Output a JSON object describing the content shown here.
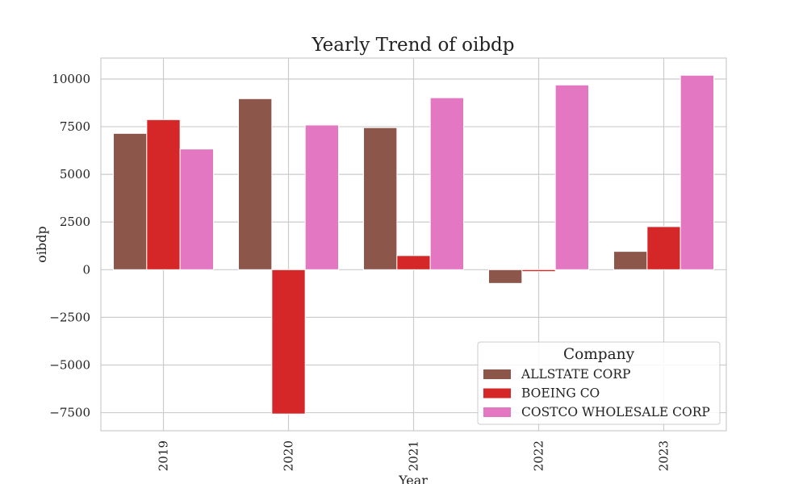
{
  "chart_data": {
    "type": "bar",
    "title": "Yearly Trend of oibdp",
    "xlabel": "Year",
    "ylabel": "oibdp",
    "categories": [
      "2019",
      "2020",
      "2021",
      "2022",
      "2023"
    ],
    "series": [
      {
        "name": "ALLSTATE CORP",
        "color": "#8c564b",
        "values": [
          7150,
          8970,
          7450,
          -720,
          960
        ]
      },
      {
        "name": "BOEING CO",
        "color": "#d62728",
        "values": [
          7870,
          -7570,
          740,
          -100,
          2260
        ]
      },
      {
        "name": "COSTCO WHOLESALE CORP",
        "color": "#e377c2",
        "values": [
          6330,
          7590,
          9020,
          9690,
          10200
        ]
      }
    ],
    "ylim": [
      -8450,
      11100
    ],
    "yticks": [
      -7500,
      -5000,
      -2500,
      0,
      2500,
      5000,
      7500,
      10000
    ],
    "ytick_labels": [
      "−7500",
      "−5000",
      "−2500",
      "0",
      "2500",
      "5000",
      "7500",
      "10000"
    ],
    "grid": true,
    "legend": {
      "title": "Company",
      "placement": "lower-right"
    }
  }
}
